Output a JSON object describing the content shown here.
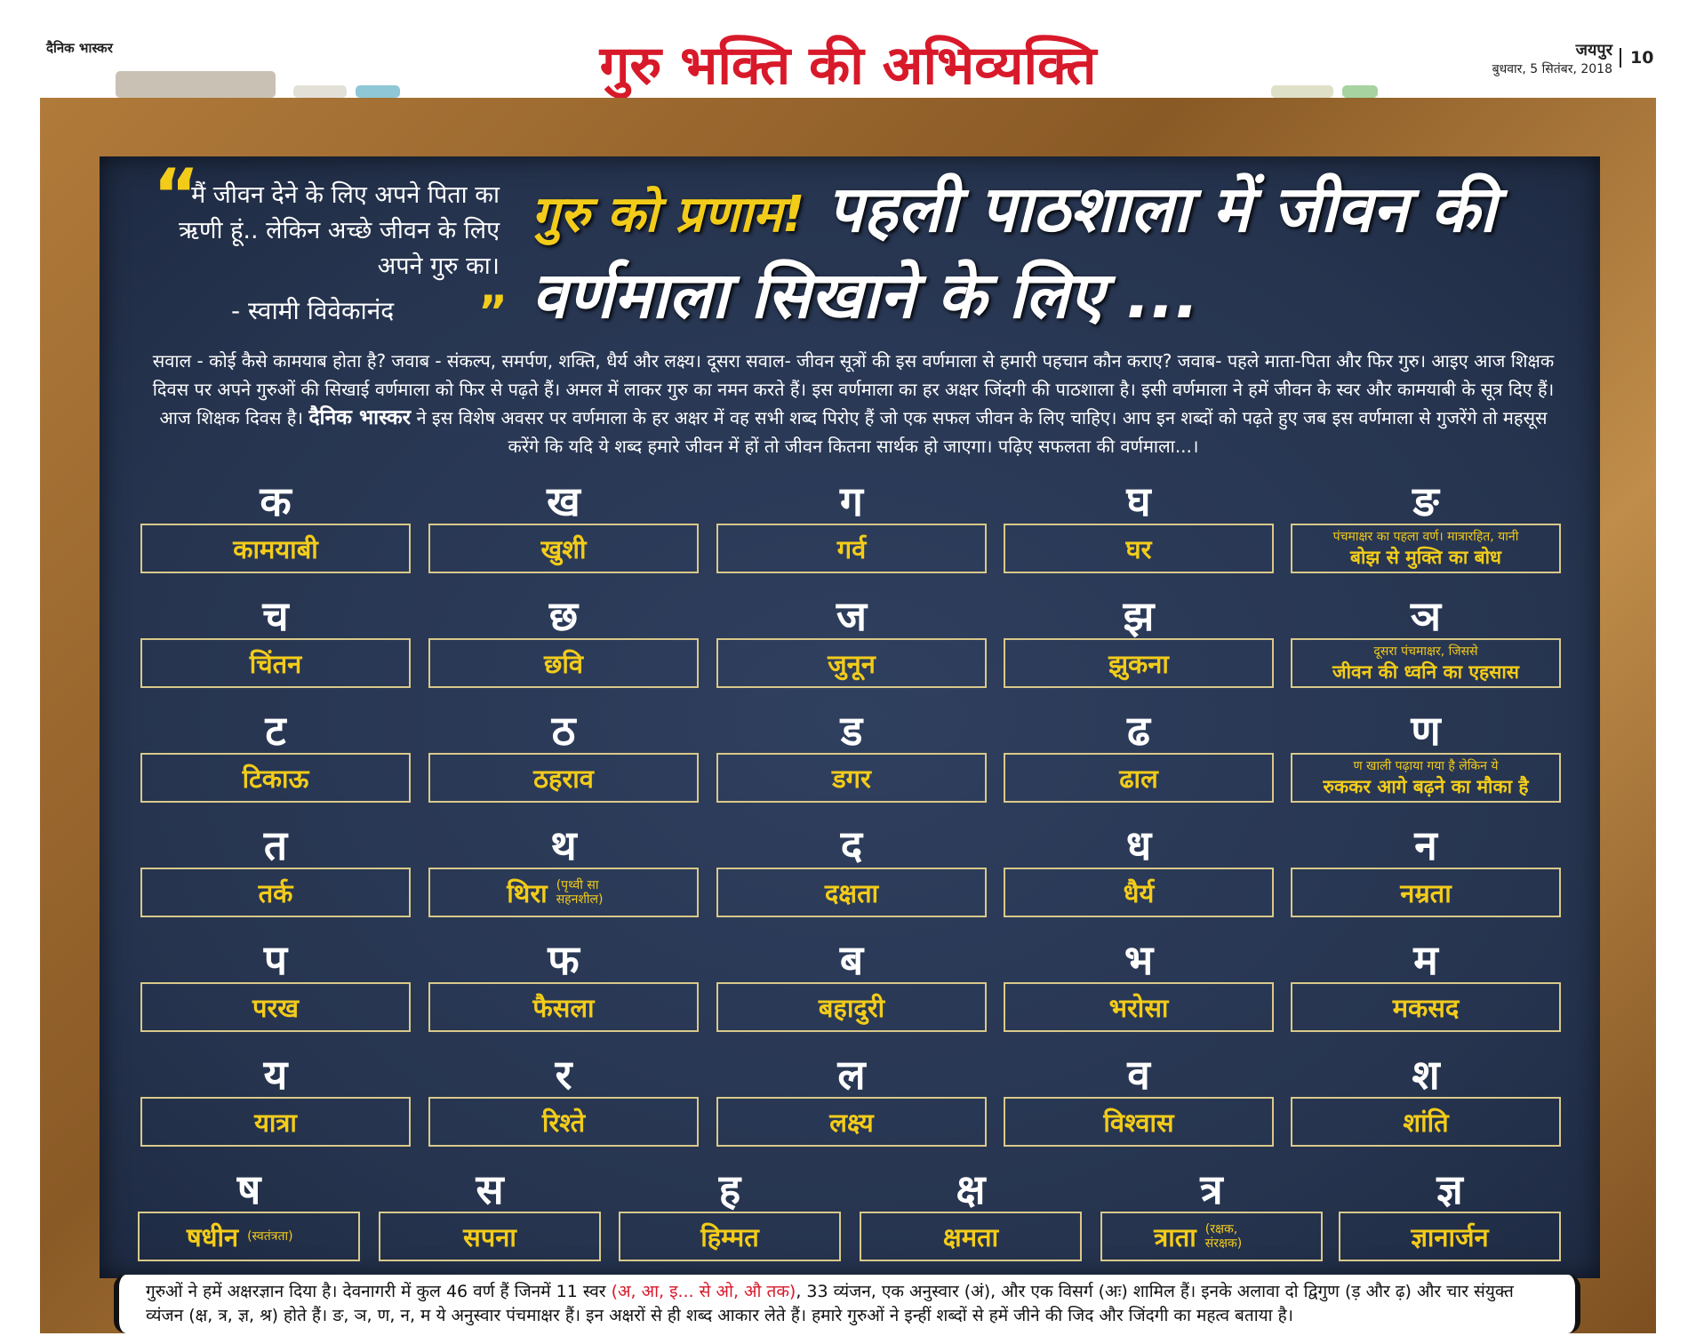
{
  "header": {
    "brand": "दैनिक भास्कर",
    "title": "गुरु भक्ति की अभिव्यक्ति",
    "city": "जयपुर",
    "date": "बुधवार, 5 सितंबर, 2018",
    "page": "10"
  },
  "quote": {
    "open_mark": "“",
    "text": "मैं जीवन देने के लिए अपने पिता का ऋणी हूं.. लेकिन अच्छे जीवन के लिए अपने गुरु का।",
    "author": "- स्वामी विवेकानंद",
    "close_mark": "”"
  },
  "headline": {
    "highlight": "गुरु को प्रणाम!",
    "text": "पहली पाठशाला में जीवन की वर्णमाला सिखाने के लिए ..."
  },
  "intro": {
    "before": "सवाल - कोई कैसे कामयाब होता है? जवाब - संकल्प, समर्पण, शक्ति, धैर्य और लक्ष्य। दूसरा सवाल- जीवन सूत्रों की इस वर्णमाला से हमारी पहचान कौन कराए? जवाब- पहले माता-पिता और फिर गुरु। आइए आज शिक्षक दिवस पर अपने गुरुओं की सिखाई वर्णमाला को फिर से पढ़ते हैं। अमल में लाकर गुरु का नमन करते हैं। इस वर्णमाला का हर अक्षर जिंदगी की पाठशाला है। इसी वर्णमाला ने हमें जीवन के स्वर और कामयाबी के सूत्र दिए हैं। आज शिक्षक दिवस है।",
    "brand": "दैनिक भास्कर",
    "after": "ने इस विशेष अवसर पर वर्णमाला के हर अक्षर में वह सभी शब्द पिरोए हैं जो एक सफल जीवन के लिए चाहिए। आप इन शब्दों को पढ़ते हुए जब इस वर्णमाला से गुजरेंगे तो महसूस करेंगे कि यदि ये शब्द हमारे जीवन में हों तो जीवन कितना सार्थक हो जाएगा। पढ़िए सफलता की वर्णमाला...।"
  },
  "rows": [
    [
      {
        "letter": "क",
        "word": "कामयाबी"
      },
      {
        "letter": "ख",
        "word": "खुशी"
      },
      {
        "letter": "ग",
        "word": "गर्व"
      },
      {
        "letter": "घ",
        "word": "घर"
      },
      {
        "letter": "ङ",
        "note_above": "पंचमाक्षर का पहला वर्ण। मात्रारहित, यानी",
        "word": "बोझ से मुक्ति का बोध"
      }
    ],
    [
      {
        "letter": "च",
        "word": "चिंतन"
      },
      {
        "letter": "छ",
        "word": "छवि"
      },
      {
        "letter": "ज",
        "word": "जुनून"
      },
      {
        "letter": "झ",
        "word": "झुकना"
      },
      {
        "letter": "ञ",
        "note_above": "दूसरा पंचमाक्षर, जिससे",
        "word": "जीवन की ध्वनि का एहसास"
      }
    ],
    [
      {
        "letter": "ट",
        "word": "टिकाऊ"
      },
      {
        "letter": "ठ",
        "word": "ठहराव"
      },
      {
        "letter": "ड",
        "word": "डगर"
      },
      {
        "letter": "ढ",
        "word": "ढाल"
      },
      {
        "letter": "ण",
        "note_above": "ण खाली पढ़ाया गया है लेकिन ये",
        "word": "रुककर आगे बढ़ने का मौका है"
      }
    ],
    [
      {
        "letter": "त",
        "word": "तर्क"
      },
      {
        "letter": "थ",
        "word": "थिरा",
        "note": "(पृथ्वी सा सहनशील)"
      },
      {
        "letter": "द",
        "word": "दक्षता"
      },
      {
        "letter": "ध",
        "word": "धैर्य"
      },
      {
        "letter": "न",
        "word": "नम्रता"
      }
    ],
    [
      {
        "letter": "प",
        "word": "परख"
      },
      {
        "letter": "फ",
        "word": "फैसला"
      },
      {
        "letter": "ब",
        "word": "बहादुरी"
      },
      {
        "letter": "भ",
        "word": "भरोसा"
      },
      {
        "letter": "म",
        "word": "मकसद"
      }
    ],
    [
      {
        "letter": "य",
        "word": "यात्रा"
      },
      {
        "letter": "र",
        "word": "रिश्ते"
      },
      {
        "letter": "ल",
        "word": "लक्ष्य"
      },
      {
        "letter": "व",
        "word": "विश्वास"
      },
      {
        "letter": "श",
        "word": "शांति"
      }
    ],
    [
      {
        "letter": "ष",
        "word": "षधीन",
        "note": "(स्वतंत्रता)"
      },
      {
        "letter": "स",
        "word": "सपना"
      },
      {
        "letter": "ह",
        "word": "हिम्मत"
      },
      {
        "letter": "क्ष",
        "word": "क्षमता"
      },
      {
        "letter": "त्र",
        "word": "त्राता",
        "note": "(रक्षक, संरक्षक)"
      },
      {
        "letter": "ज्ञ",
        "word": "ज्ञानार्जन"
      }
    ]
  ],
  "footer": {
    "before": "गुरुओं ने हमें अक्षरज्ञान दिया है। देवनागरी में कुल 46 वर्ण हैं जिनमें 11 स्वर",
    "highlight": "(अ, आ, इ... से ओ, औ तक)",
    "after": ", 33 व्यंजन, एक अनुस्वार (अं), और एक विसर्ग (अः) शामिल हैं। इनके अलावा दो द्विगुण (ड़ और ढ़) और चार संयुक्त व्यंजन (क्ष, त्र, ज्ञ, श्र) होते हैं। ङ, ञ, ण, न, म ये अनुस्वार पंचमाक्षर हैं। इन अक्षरों से ही शब्द आकार लेते हैं। हमारे गुरुओं ने इन्हीं शब्दों से हमें जीने की जिद और जिंदगी का महत्व बताया है।"
  }
}
